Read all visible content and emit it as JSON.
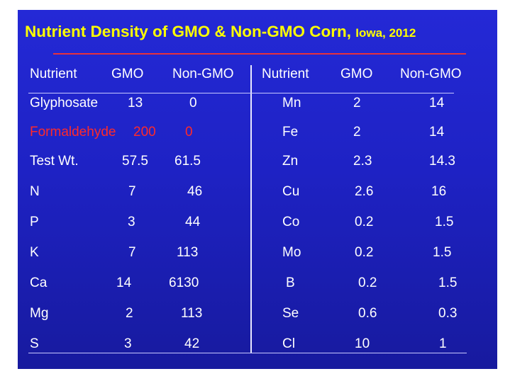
{
  "title": {
    "main": "Nutrient Density of GMO & Non-GMO Corn,",
    "sub": "Iowa, 2012"
  },
  "colors": {
    "background": "#1e22c4",
    "title": "#ffff00",
    "title_rule": "#e8323c",
    "highlight_row": "#ff2a2a",
    "text": "#ffffff"
  },
  "headers": {
    "left": [
      "Nutrient",
      "GMO",
      "Non-GMO"
    ],
    "right": [
      "Nutrient",
      "GMO",
      "Non-GMO"
    ]
  },
  "left_rows": [
    {
      "nutrient": "Glyphosate",
      "gmo": "13",
      "non_gmo": "0",
      "highlight": false
    },
    {
      "nutrient": "Formaldehyde",
      "gmo": "200",
      "non_gmo": "0",
      "highlight": true
    },
    {
      "nutrient": "Test Wt.",
      "gmo": "57.5",
      "non_gmo": "61.5",
      "highlight": false
    },
    {
      "nutrient": "N",
      "gmo": "7",
      "non_gmo": "46",
      "highlight": false
    },
    {
      "nutrient": "P",
      "gmo": "3",
      "non_gmo": "44",
      "highlight": false
    },
    {
      "nutrient": "K",
      "gmo": "7",
      "non_gmo": "113",
      "highlight": false
    },
    {
      "nutrient": "Ca",
      "gmo": "14",
      "non_gmo": "6130",
      "highlight": false
    },
    {
      "nutrient": "Mg",
      "gmo": "2",
      "non_gmo": "113",
      "highlight": false
    },
    {
      "nutrient": "S",
      "gmo": "3",
      "non_gmo": "42",
      "highlight": false
    }
  ],
  "right_rows": [
    {
      "nutrient": "Mn",
      "gmo": "2",
      "non_gmo": "14"
    },
    {
      "nutrient": "Fe",
      "gmo": "2",
      "non_gmo": "14"
    },
    {
      "nutrient": "Zn",
      "gmo": "2.3",
      "non_gmo": "14.3"
    },
    {
      "nutrient": "Cu",
      "gmo": "2.6",
      "non_gmo": "16"
    },
    {
      "nutrient": "Co",
      "gmo": "0.2",
      "non_gmo": "1.5"
    },
    {
      "nutrient": "Mo",
      "gmo": "0.2",
      "non_gmo": "1.5"
    },
    {
      "nutrient": "B",
      "gmo": "0.2",
      "non_gmo": "1.5"
    },
    {
      "nutrient": "Se",
      "gmo": "0.6",
      "non_gmo": "0.3"
    },
    {
      "nutrient": "Cl",
      "gmo": "10",
      "non_gmo": "1"
    }
  ]
}
